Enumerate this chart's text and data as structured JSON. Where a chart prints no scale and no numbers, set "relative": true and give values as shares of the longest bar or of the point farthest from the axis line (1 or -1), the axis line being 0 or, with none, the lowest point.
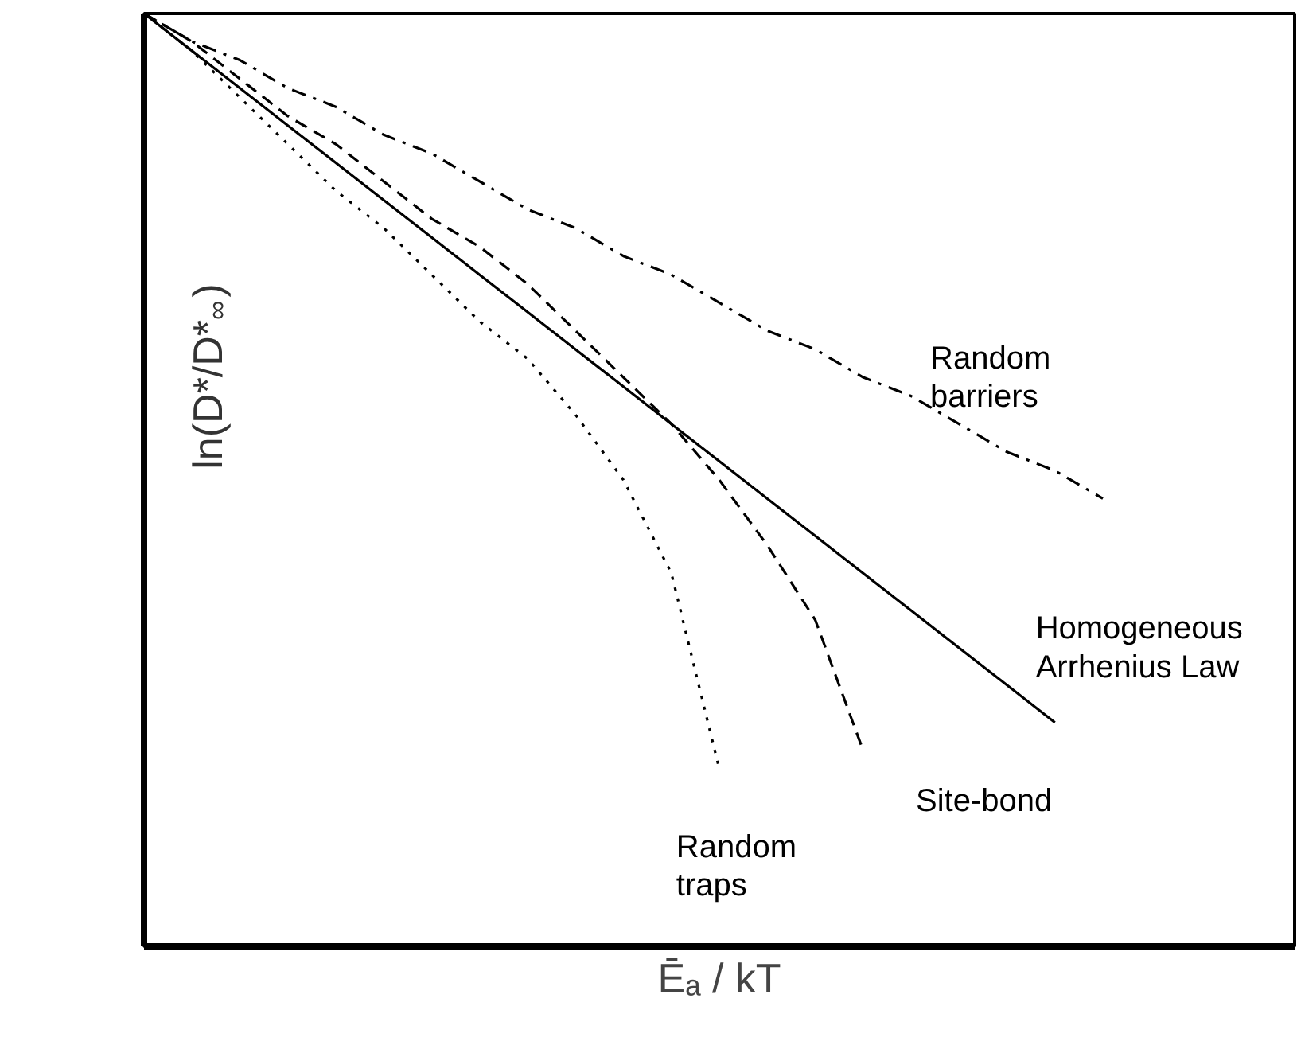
{
  "chart_data": {
    "type": "line",
    "relative": true,
    "xlabel": "Ēₐ / kT",
    "ylabel": "ln(D*/D*$_{∞}$)",
    "categories": [
      null,
      null,
      null,
      null,
      null,
      null,
      null,
      null,
      null,
      null,
      null,
      null,
      null,
      null,
      null,
      null,
      null,
      null,
      null,
      null,
      null,
      null,
      null,
      null,
      null
    ],
    "marker": "none",
    "series": [
      {
        "name": "Random barriers",
        "color": "#000000",
        "line_style": "dashdot",
        "values": [
          1,
          0.97,
          0.95,
          0.92,
          0.9,
          0.87,
          0.85,
          0.82,
          0.79,
          0.77,
          0.74,
          0.72,
          0.69,
          0.66,
          0.64,
          0.61,
          0.59,
          0.56,
          0.53,
          0.51,
          0.48,
          null,
          null,
          null,
          null
        ]
      },
      {
        "name": "Homogeneous Arrhenius Law",
        "color": "#000000",
        "line_style": "solid",
        "values": [
          1,
          0.96,
          0.92,
          0.88,
          0.84,
          0.8,
          0.76,
          0.72,
          0.68,
          0.64,
          0.6,
          0.56,
          0.52,
          0.48,
          0.44,
          0.4,
          0.36,
          0.32,
          0.28,
          0.24,
          null,
          null,
          null,
          null,
          null
        ]
      },
      {
        "name": "Site-bond",
        "color": "#000000",
        "line_style": "dashed",
        "values": [
          1,
          0.97,
          0.93,
          0.89,
          0.86,
          0.82,
          0.78,
          0.75,
          0.71,
          0.66,
          0.61,
          0.56,
          0.5,
          0.43,
          0.35,
          0.21,
          null,
          null,
          null,
          null,
          null,
          null,
          null,
          null,
          null
        ]
      },
      {
        "name": "Random traps",
        "color": "#000000",
        "line_style": "dotted",
        "values": [
          1,
          0.96,
          0.91,
          0.86,
          0.81,
          0.77,
          0.72,
          0.67,
          0.63,
          0.57,
          0.5,
          0.4,
          0.19,
          null,
          null,
          null,
          null,
          null,
          null,
          null,
          null,
          null,
          null,
          null,
          null
        ]
      }
    ]
  }
}
